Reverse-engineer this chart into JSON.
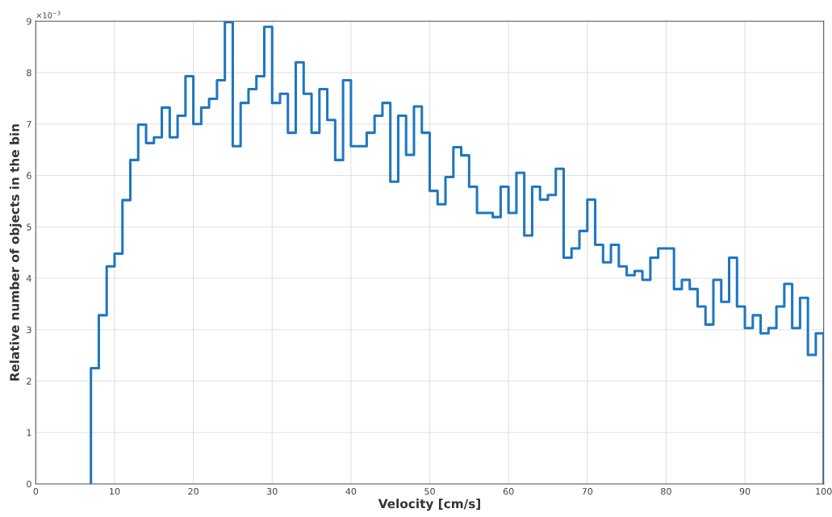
{
  "chart_data": {
    "type": "histogram",
    "xlabel": "Velocity [cm/s]",
    "ylabel": "Relative number of objects in the bin",
    "annotations": [
      "×10$^{−3}$"
    ],
    "bins": [
      7,
      8,
      9,
      10,
      11,
      12,
      13,
      14,
      15,
      16,
      17,
      18,
      19,
      20,
      21,
      22,
      23,
      24,
      25,
      26,
      27,
      28,
      29,
      30,
      31,
      32,
      33,
      34,
      35,
      36,
      37,
      38,
      39,
      40,
      41,
      42,
      43,
      44,
      45,
      46,
      47,
      48,
      49,
      50,
      51,
      52,
      53,
      54,
      55,
      56,
      57,
      58,
      59,
      60,
      61,
      62,
      63,
      64,
      65,
      66,
      67,
      68,
      69,
      70,
      71,
      72,
      73,
      74,
      75,
      76,
      77,
      78,
      79,
      80,
      81,
      82,
      83,
      84,
      85,
      86,
      87,
      88,
      89,
      90,
      91,
      92,
      93,
      94,
      95,
      96,
      97,
      98,
      99,
      100
    ],
    "values": [
      2.25,
      3.28,
      4.23,
      4.48,
      5.52,
      6.3,
      6.99,
      6.63,
      6.74,
      7.32,
      6.74,
      7.16,
      7.93,
      7.0,
      7.32,
      7.49,
      7.85,
      8.98,
      6.57,
      7.41,
      7.68,
      7.93,
      8.89,
      7.41,
      7.59,
      6.83,
      8.2,
      7.59,
      6.83,
      7.68,
      7.08,
      6.3,
      7.85,
      6.57,
      6.57,
      6.83,
      7.16,
      7.41,
      5.88,
      7.16,
      6.4,
      7.34,
      6.83,
      5.7,
      5.44,
      5.97,
      6.55,
      6.39,
      5.78,
      5.27,
      5.27,
      5.19,
      5.78,
      5.27,
      6.05,
      4.83,
      5.78,
      5.53,
      5.62,
      6.13,
      4.4,
      4.58,
      4.92,
      5.53,
      4.65,
      4.31,
      4.65,
      4.23,
      4.06,
      4.14,
      3.97,
      4.4,
      4.58,
      4.58,
      3.79,
      3.97,
      3.79,
      3.45,
      3.1,
      3.97,
      3.54,
      4.4,
      3.45,
      3.03,
      3.28,
      2.93,
      3.03,
      3.45,
      3.89,
      3.03,
      3.62,
      2.51,
      2.93
    ],
    "color": "#1f77c0",
    "xlim": [
      0,
      100
    ],
    "xticks": [
      0,
      10,
      20,
      30,
      40,
      50,
      60,
      70,
      80,
      90,
      100
    ],
    "ylim": [
      0,
      9
    ],
    "yticks": [
      0,
      1,
      2,
      3,
      4,
      5,
      6,
      7,
      8,
      9
    ],
    "grid": true
  }
}
